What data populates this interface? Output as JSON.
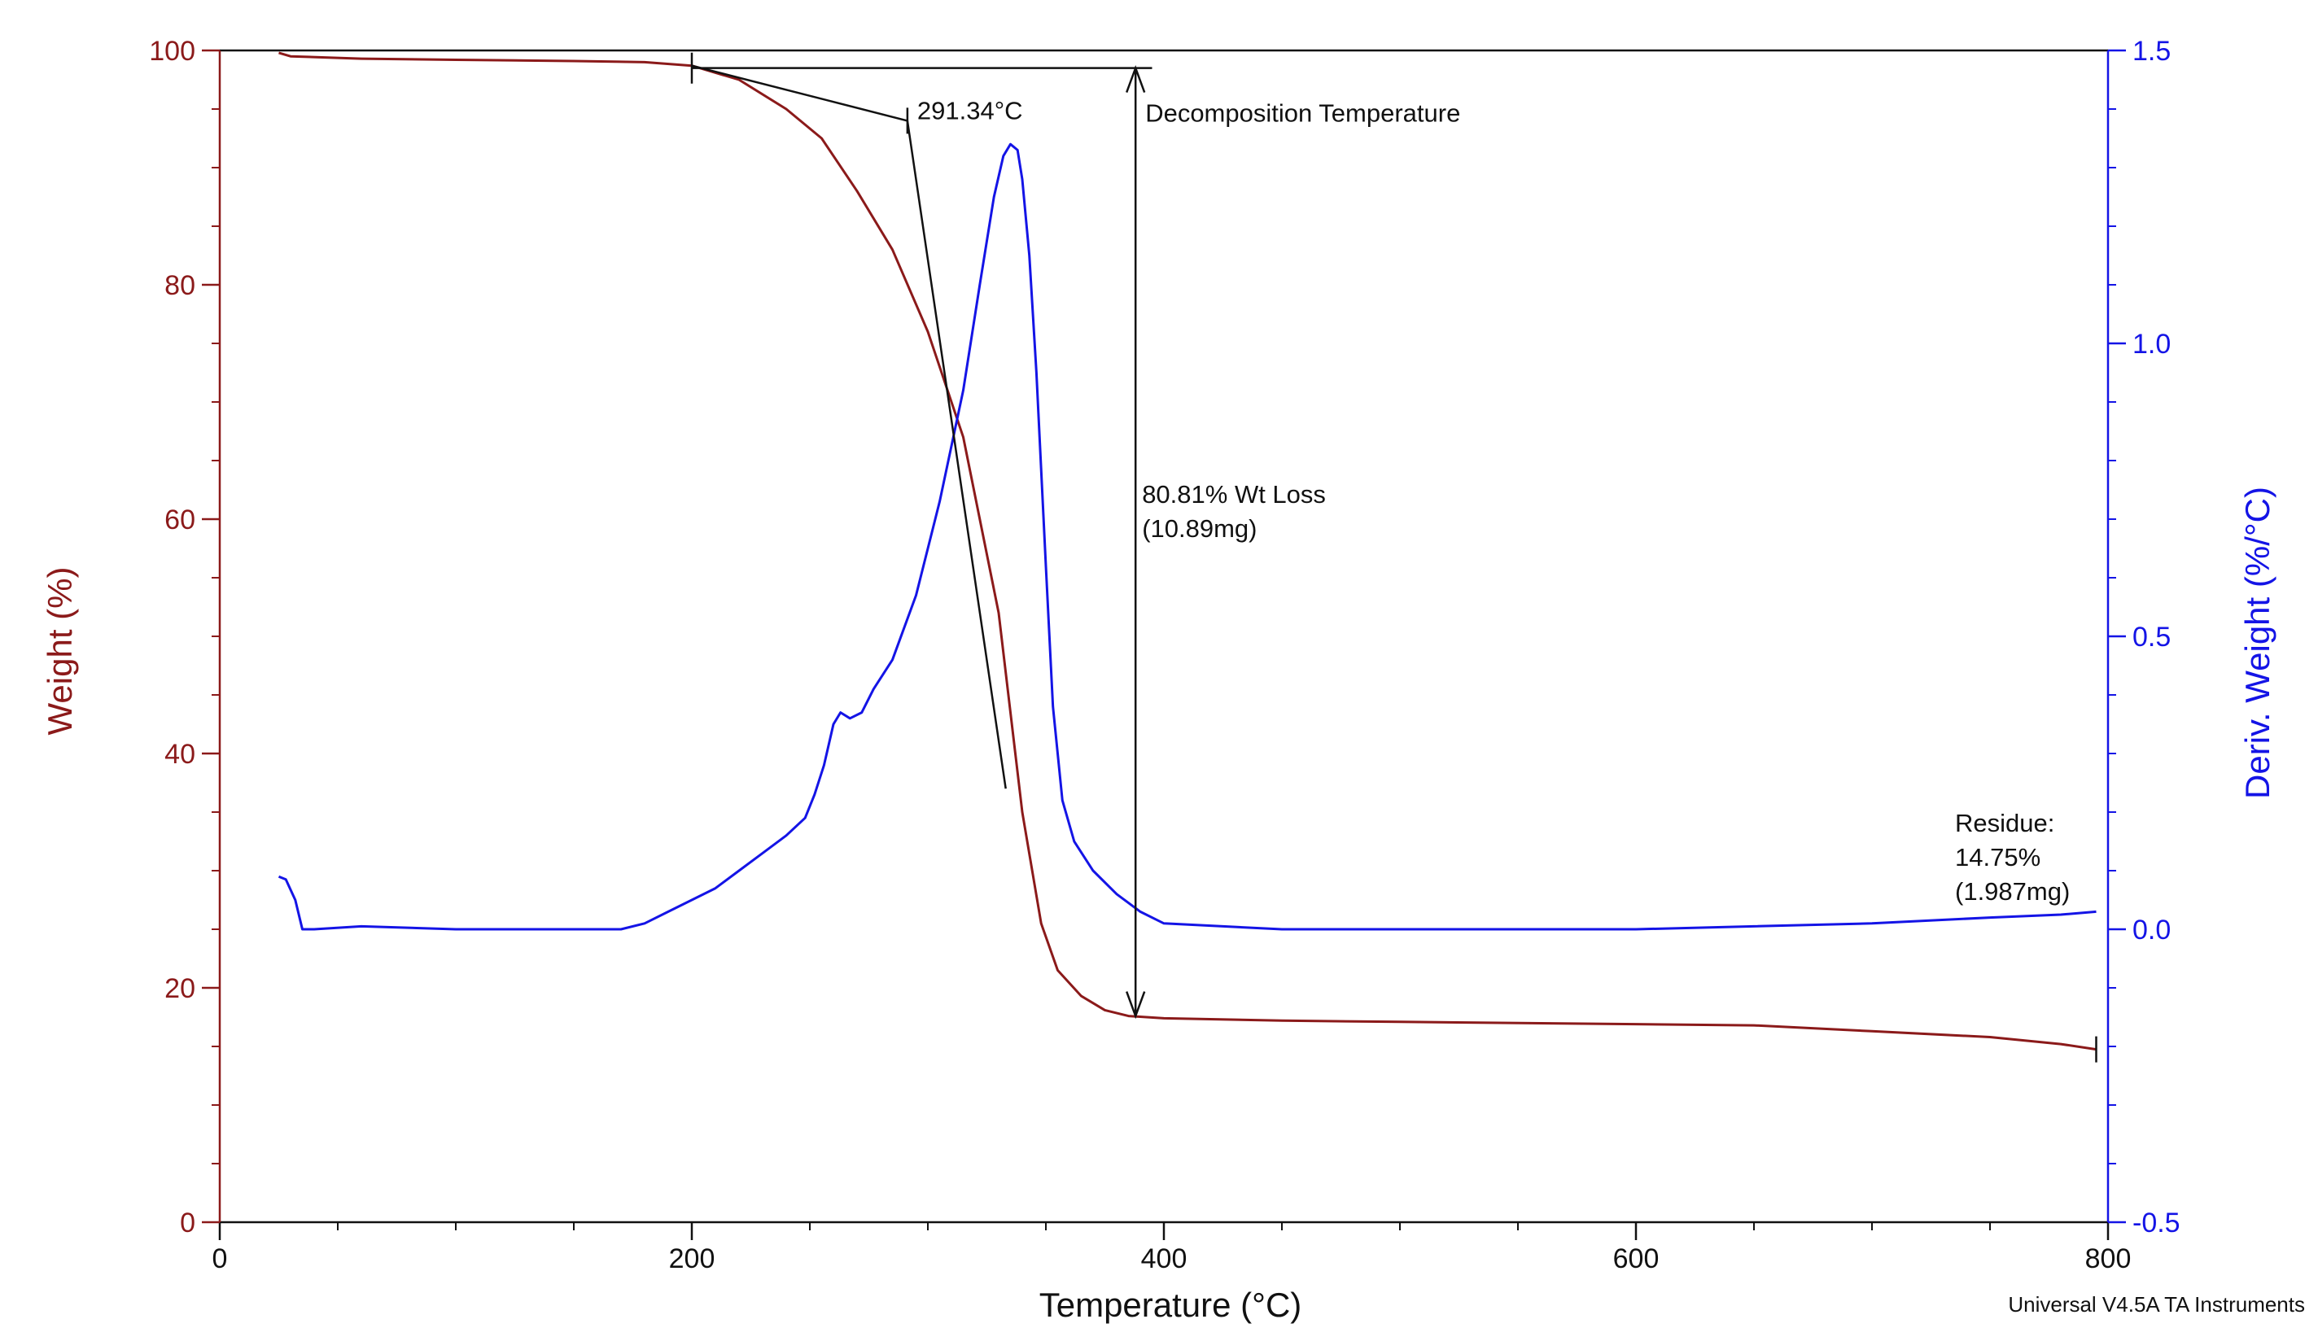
{
  "chart_data": {
    "type": "line",
    "x_axis": {
      "label": "Temperature (°C)",
      "range": [
        0,
        800
      ],
      "ticks": [
        "0",
        "200",
        "400",
        "600",
        "800"
      ],
      "tick_values": [
        0,
        200,
        400,
        600,
        800
      ],
      "minor_step": 50
    },
    "y_left": {
      "label": "Weight (%)",
      "range": [
        0,
        100
      ],
      "ticks": [
        "0",
        "20",
        "40",
        "60",
        "80",
        "100"
      ],
      "tick_values": [
        0,
        20,
        40,
        60,
        80,
        100
      ],
      "minor_step": 5
    },
    "y_right": {
      "label": "Deriv. Weight (%/°C)",
      "range": [
        -0.5,
        1.5
      ],
      "ticks": [
        "-0.5",
        "0.0",
        "0.5",
        "1.0",
        "1.5"
      ],
      "tick_values": [
        -0.5,
        0,
        0.5,
        1.0,
        1.5
      ],
      "minor_step": 0.1
    },
    "series": [
      {
        "name": "Weight",
        "axis": "left",
        "color": "#8b1a1a",
        "x": [
          25,
          30,
          60,
          100,
          150,
          180,
          200,
          220,
          240,
          255,
          270,
          285,
          300,
          315,
          330,
          340,
          348,
          355,
          365,
          375,
          385,
          400,
          450,
          500,
          600,
          650,
          700,
          750,
          780,
          795
        ],
        "y": [
          99.8,
          99.5,
          99.3,
          99.2,
          99.1,
          99.0,
          98.7,
          97.5,
          95.0,
          92.5,
          88.0,
          83.0,
          76.0,
          67.0,
          52.0,
          35.0,
          25.5,
          21.5,
          19.3,
          18.1,
          17.6,
          17.4,
          17.2,
          17.1,
          16.9,
          16.8,
          16.3,
          15.8,
          15.2,
          14.75
        ]
      },
      {
        "name": "Deriv. Weight",
        "axis": "right",
        "color": "#1414e6",
        "x": [
          25,
          28,
          32,
          35,
          40,
          60,
          100,
          150,
          170,
          180,
          190,
          200,
          210,
          220,
          230,
          240,
          248,
          252,
          256,
          260,
          263,
          267,
          272,
          277,
          285,
          295,
          305,
          315,
          322,
          328,
          332,
          335,
          338,
          340,
          343,
          346,
          350,
          353,
          357,
          362,
          370,
          380,
          390,
          400,
          450,
          500,
          600,
          650,
          700,
          750,
          780,
          795
        ],
        "y": [
          0.09,
          0.085,
          0.05,
          0.0,
          0.0,
          0.005,
          0.0,
          0.0,
          0.0,
          0.01,
          0.03,
          0.05,
          0.07,
          0.1,
          0.13,
          0.16,
          0.19,
          0.23,
          0.28,
          0.35,
          0.37,
          0.36,
          0.37,
          0.41,
          0.46,
          0.57,
          0.73,
          0.92,
          1.1,
          1.25,
          1.32,
          1.34,
          1.33,
          1.28,
          1.15,
          0.95,
          0.62,
          0.38,
          0.22,
          0.15,
          0.1,
          0.06,
          0.03,
          0.01,
          0.0,
          0.0,
          0.0,
          0.005,
          0.01,
          0.02,
          0.025,
          0.03
        ]
      }
    ],
    "annotations": {
      "onset": {
        "label": "291.34°C",
        "x": 291.34,
        "baseline_start": [
          200,
          98.7
        ],
        "baseline_end": [
          291.34,
          94.0
        ],
        "tangent_end": [
          333,
          37.0
        ]
      },
      "decomposition_label": "Decomposition Temperature",
      "weight_loss": {
        "line1": "80.81% Wt Loss",
        "line2": "(10.89mg)",
        "x": 388,
        "from": 98.5,
        "to": 17.6,
        "top_ref_start": 200,
        "top_ref_end": 395
      },
      "residue": {
        "line1": "Residue:",
        "line2": "14.75%",
        "line3": "(1.987mg)",
        "x": 795,
        "y": 14.75
      }
    },
    "footer": "Universal V4.5A TA Instruments"
  }
}
